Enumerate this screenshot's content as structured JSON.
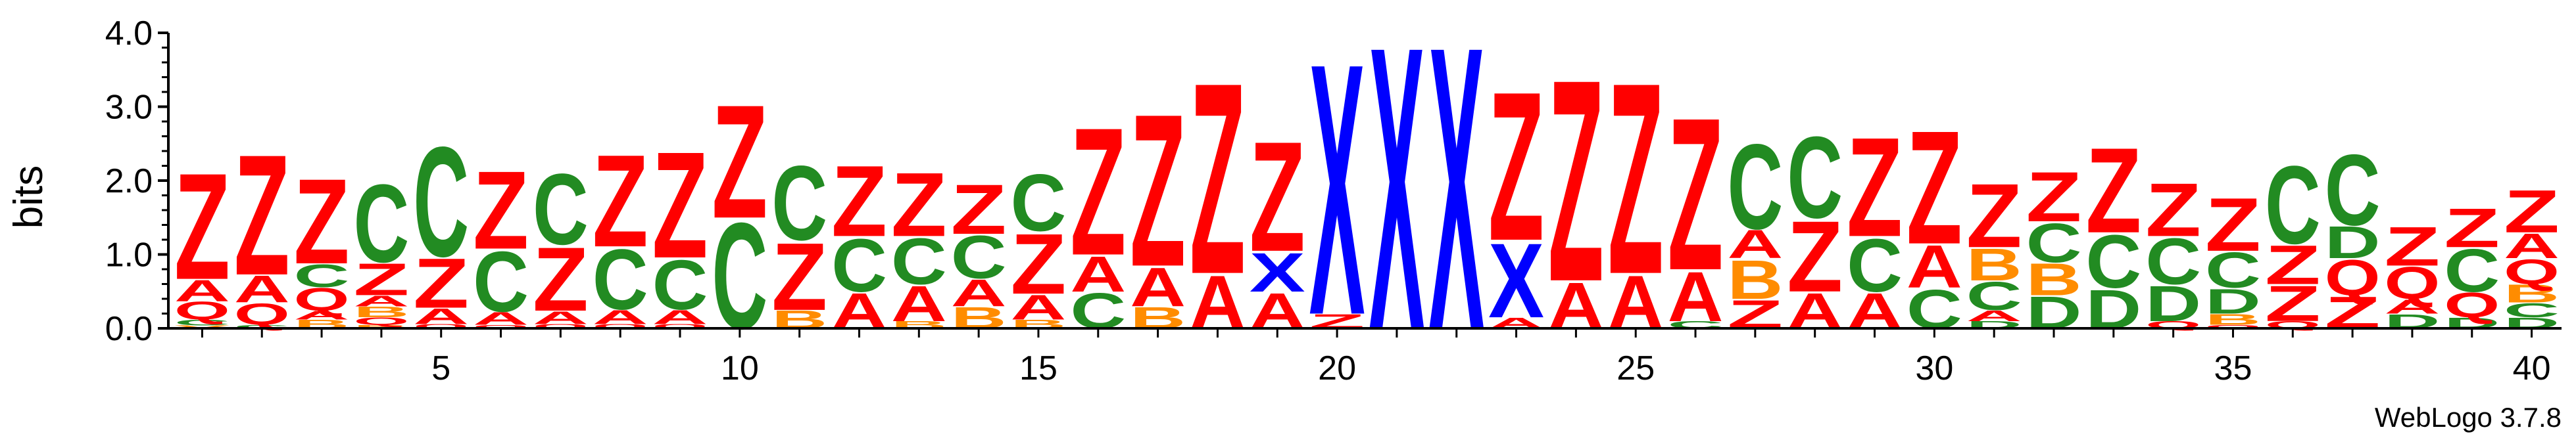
{
  "chart_data": {
    "type": "sequence-logo",
    "ylabel": "bits",
    "ylim": [
      0,
      4.0
    ],
    "y_ticks": [
      "0.0",
      "1.0",
      "2.0",
      "3.0",
      "4.0"
    ],
    "x_ticks": [
      "5",
      "10",
      "15",
      "20",
      "25",
      "30",
      "35",
      "40"
    ],
    "x_tick_positions": [
      5,
      10,
      15,
      20,
      25,
      30,
      35,
      40
    ],
    "positions": 40,
    "credit": "WebLogo 3.7.8",
    "colors": {
      "Z": "#ff0000",
      "A": "#ff0000",
      "Q": "#ff0000",
      "C": "#228b22",
      "D": "#228b22",
      "B": "#ff8c00",
      "X": "#0000ff",
      "V": "#ff8c00"
    },
    "stacks": [
      [
        [
          "V",
          0.04
        ],
        [
          "C",
          0.08
        ],
        [
          "Q",
          0.25
        ],
        [
          "A",
          0.3
        ],
        [
          "Z",
          1.5
        ]
      ],
      [
        [
          "C",
          0.05
        ],
        [
          "Q",
          0.3
        ],
        [
          "A",
          0.38
        ],
        [
          "Z",
          1.7
        ]
      ],
      [
        [
          "B",
          0.12
        ],
        [
          "A",
          0.12
        ],
        [
          "Q",
          0.32
        ],
        [
          "C",
          0.32
        ],
        [
          "Z",
          1.2
        ]
      ],
      [
        [
          "B",
          0.05
        ],
        [
          "Q",
          0.1
        ],
        [
          "B",
          0.15
        ],
        [
          "A",
          0.15
        ],
        [
          "Z",
          0.45
        ],
        [
          "C",
          1.1
        ]
      ],
      [
        [
          "Q",
          0.06
        ],
        [
          "A",
          0.22
        ],
        [
          "Z",
          0.7
        ],
        [
          "C",
          1.55
        ]
      ],
      [
        [
          "Q",
          0.05
        ],
        [
          "A",
          0.18
        ],
        [
          "C",
          0.85
        ],
        [
          "Z",
          1.1
        ]
      ],
      [
        [
          "Q",
          0.06
        ],
        [
          "A",
          0.18
        ],
        [
          "Z",
          0.9
        ],
        [
          "C",
          1.0
        ]
      ],
      [
        [
          "Q",
          0.06
        ],
        [
          "A",
          0.2
        ],
        [
          "C",
          0.85
        ],
        [
          "Z",
          1.3
        ]
      ],
      [
        [
          "Q",
          0.06
        ],
        [
          "A",
          0.2
        ],
        [
          "C",
          0.7
        ],
        [
          "Z",
          1.5
        ]
      ],
      [
        [
          "C",
          1.5
        ],
        [
          "Z",
          1.6
        ]
      ],
      [
        [
          "B",
          0.25
        ],
        [
          "Z",
          0.95
        ],
        [
          "C",
          1.05
        ]
      ],
      [
        [
          "A",
          0.5
        ],
        [
          "C",
          0.75
        ],
        [
          "Z",
          1.0
        ]
      ],
      [
        [
          "B",
          0.1
        ],
        [
          "A",
          0.5
        ],
        [
          "C",
          0.65
        ],
        [
          "Z",
          0.9
        ]
      ],
      [
        [
          "B",
          0.3
        ],
        [
          "A",
          0.38
        ],
        [
          "C",
          0.6
        ],
        [
          "Z",
          0.7
        ]
      ],
      [
        [
          "B",
          0.12
        ],
        [
          "A",
          0.35
        ],
        [
          "Z",
          0.85
        ],
        [
          "C",
          0.8
        ]
      ],
      [
        [
          "C",
          0.5
        ],
        [
          "A",
          0.5
        ],
        [
          "Z",
          1.8
        ]
      ],
      [
        [
          "B",
          0.3
        ],
        [
          "A",
          0.55
        ],
        [
          "Z",
          2.15
        ]
      ],
      [
        [
          "A",
          0.75
        ],
        [
          "Z",
          2.7
        ]
      ],
      [
        [
          "A",
          0.5
        ],
        [
          "X",
          0.55
        ],
        [
          "Z",
          1.55
        ]
      ],
      [
        [
          "Z",
          0.2
        ],
        [
          "X",
          3.55
        ]
      ],
      [
        [
          "X",
          4.0
        ]
      ],
      [
        [
          "X",
          4.0
        ]
      ],
      [
        [
          "A",
          0.15
        ],
        [
          "X",
          1.05
        ],
        [
          "Z",
          2.1
        ]
      ],
      [
        [
          "A",
          0.65
        ],
        [
          "Z",
          2.85
        ]
      ],
      [
        [
          "A",
          0.75
        ],
        [
          "Z",
          2.7
        ]
      ],
      [
        [
          "C",
          0.1
        ],
        [
          "A",
          0.7
        ],
        [
          "Z",
          2.15
        ]
      ],
      [
        [
          "Z",
          0.4
        ],
        [
          "B",
          0.55
        ],
        [
          "A",
          0.4
        ],
        [
          "C",
          1.2
        ]
      ],
      [
        [
          "A",
          0.5
        ],
        [
          "Z",
          1.0
        ],
        [
          "C",
          1.15
        ]
      ],
      [
        [
          "A",
          0.5
        ],
        [
          "C",
          0.75
        ],
        [
          "Z",
          1.4
        ]
      ],
      [
        [
          "C",
          0.55
        ],
        [
          "A",
          0.6
        ],
        [
          "Z",
          1.6
        ]
      ],
      [
        [
          "D",
          0.1
        ],
        [
          "A",
          0.15
        ],
        [
          "C",
          0.4
        ],
        [
          "B",
          0.45
        ],
        [
          "Z",
          0.9
        ]
      ],
      [
        [
          "D",
          0.45
        ],
        [
          "B",
          0.45
        ],
        [
          "C",
          0.55
        ],
        [
          "Z",
          0.7
        ]
      ],
      [
        [
          "D",
          0.55
        ],
        [
          "C",
          0.75
        ],
        [
          "Z",
          1.2
        ]
      ],
      [
        [
          "Q",
          0.1
        ],
        [
          "D",
          0.5
        ],
        [
          "C",
          0.65
        ],
        [
          "Z",
          0.75
        ]
      ],
      [
        [
          "Q",
          0.05
        ],
        [
          "B",
          0.15
        ],
        [
          "D",
          0.35
        ],
        [
          "C",
          0.5
        ],
        [
          "Z",
          0.75
        ]
      ],
      [
        [
          "Q",
          0.1
        ],
        [
          "Z",
          0.5
        ],
        [
          "Z",
          0.55
        ],
        [
          "C",
          1.1
        ]
      ],
      [
        [
          "Z",
          0.45
        ],
        [
          "Q",
          0.5
        ],
        [
          "D",
          0.45
        ],
        [
          "C",
          1.0
        ]
      ],
      [
        [
          "D",
          0.2
        ],
        [
          "A",
          0.2
        ],
        [
          "Q",
          0.45
        ],
        [
          "Z",
          0.55
        ]
      ],
      [
        [
          "D",
          0.15
        ],
        [
          "Q",
          0.35
        ],
        [
          "C",
          0.6
        ],
        [
          "Z",
          0.55
        ]
      ],
      [
        [
          "D",
          0.15
        ],
        [
          "C",
          0.2
        ],
        [
          "B",
          0.25
        ],
        [
          "Q",
          0.35
        ],
        [
          "A",
          0.35
        ],
        [
          "Z",
          0.6
        ]
      ]
    ]
  }
}
